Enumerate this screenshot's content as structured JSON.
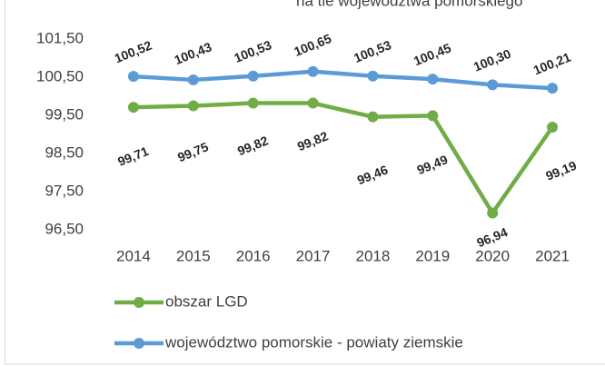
{
  "chart_data": {
    "type": "line",
    "title": "na tle województwa pomorskiego",
    "categories": [
      "2014",
      "2015",
      "2016",
      "2017",
      "2018",
      "2019",
      "2020",
      "2021"
    ],
    "series": [
      {
        "name": "obszar LGD",
        "color": "#70ad47",
        "values": [
          99.71,
          99.75,
          99.82,
          99.82,
          99.46,
          99.49,
          96.94,
          99.19
        ],
        "value_labels": [
          "99,71",
          "99,75",
          "99,82",
          "99,82",
          "99,46",
          "99,49",
          "96,94",
          "99,19"
        ]
      },
      {
        "name": "województwo pomorskie - powiaty ziemskie",
        "color": "#5b9bd5",
        "values": [
          100.52,
          100.43,
          100.53,
          100.65,
          100.53,
          100.45,
          100.3,
          100.21
        ],
        "value_labels": [
          "100,52",
          "100,43",
          "100,53",
          "100,65",
          "100,53",
          "100,45",
          "100,30",
          "100,21"
        ]
      }
    ],
    "ylim": [
      96.5,
      101.5
    ],
    "yticks": [
      {
        "value": 96.5,
        "label": "96,50"
      },
      {
        "value": 97.5,
        "label": "97,50"
      },
      {
        "value": 98.5,
        "label": "98,50"
      },
      {
        "value": 99.5,
        "label": "99,50"
      },
      {
        "value": 100.5,
        "label": "100,50"
      },
      {
        "value": 101.5,
        "label": "101,50"
      }
    ],
    "grid": false,
    "legend": "bottom"
  }
}
